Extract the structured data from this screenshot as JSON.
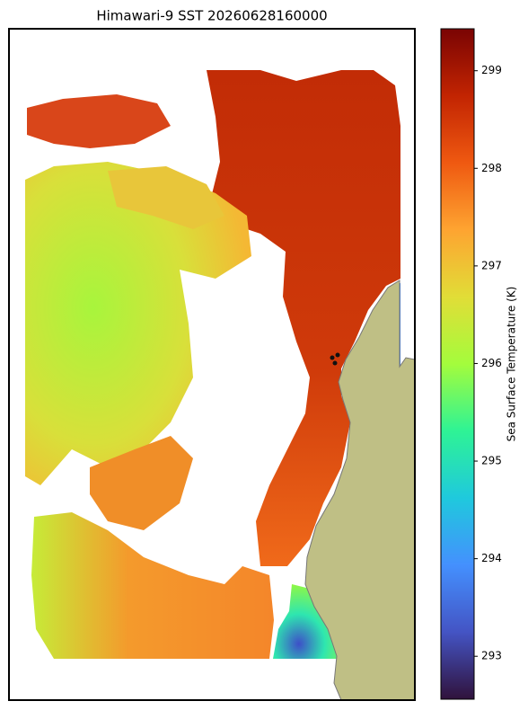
{
  "chart_data": {
    "type": "map",
    "title": "Himawari-9 SST 20260628160000",
    "colorbar": {
      "label": "Sea Surface Temperature (K)",
      "clim": [
        292.56,
        299.43
      ],
      "ticks": [
        293,
        294,
        295,
        296,
        297,
        298,
        299
      ]
    }
  }
}
